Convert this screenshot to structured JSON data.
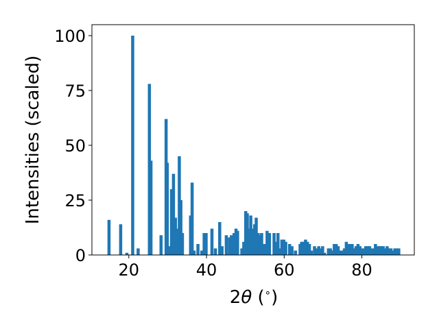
{
  "chart_data": {
    "type": "bar",
    "xlabel_prefix": "2",
    "xlabel_symbol": "θ",
    "xlabel_suffix": " (",
    "xlabel_degree": "∘",
    "xlabel_close": ")",
    "ylabel": "Intensities (scaled)",
    "xlim": [
      10.5,
      93.5
    ],
    "ylim": [
      0,
      105
    ],
    "xticks": [
      20,
      40,
      60,
      80
    ],
    "xtick_labels": [
      "20",
      "40",
      "60",
      "80"
    ],
    "yticks": [
      0,
      25,
      50,
      75,
      100
    ],
    "ytick_labels": [
      "0",
      "25",
      "50",
      "75",
      "100"
    ],
    "bar_width": 0.8,
    "grid": false,
    "bar_color": "#1f77b4",
    "x": [
      14.9,
      17.9,
      19.5,
      21.0,
      22.4,
      25.3,
      25.7,
      28.3,
      29.6,
      29.9,
      30.4,
      31.0,
      31.5,
      32.0,
      32.5,
      33.0,
      33.4,
      33.8,
      35.9,
      36.3,
      36.8,
      37.8,
      38.8,
      39.4,
      39.9,
      41.4,
      42.3,
      43.4,
      44.0,
      45.1,
      45.9,
      46.4,
      47.1,
      47.6,
      48.0,
      49.1,
      49.6,
      50.1,
      50.5,
      50.9,
      51.4,
      51.9,
      52.4,
      52.8,
      53.3,
      53.8,
      54.2,
      54.7,
      55.1,
      55.6,
      56.2,
      57.4,
      57.9,
      58.4,
      58.9,
      59.4,
      59.9,
      60.4,
      61.4,
      62.0,
      62.9,
      64.1,
      64.5,
      65.0,
      65.5,
      66.0,
      66.5,
      67.0,
      67.8,
      68.4,
      68.9,
      69.4,
      69.9,
      70.4,
      71.4,
      71.9,
      72.4,
      72.9,
      73.4,
      73.9,
      74.4,
      74.9,
      75.5,
      76.0,
      76.5,
      77.0,
      77.5,
      78.0,
      78.5,
      79.0,
      79.5,
      80.0,
      80.5,
      81.0,
      81.5,
      82.0,
      82.5,
      83.0,
      83.5,
      84.0,
      84.5,
      85.0,
      85.5,
      86.0,
      86.5,
      87.0,
      87.5,
      88.0,
      88.5,
      89.0,
      89.5
    ],
    "values": [
      16,
      14,
      1,
      100,
      3,
      78,
      43,
      9,
      62,
      42,
      4,
      30,
      37,
      17,
      12,
      45,
      25,
      10,
      18,
      33,
      2,
      5,
      2,
      10,
      10,
      12,
      3,
      15,
      4,
      9,
      8,
      9,
      10,
      12,
      11,
      3,
      6,
      20,
      19,
      12,
      18,
      12,
      14,
      17,
      10,
      9,
      10,
      5,
      5,
      11,
      10,
      10,
      6,
      10,
      3,
      7,
      7,
      6,
      5,
      4,
      2,
      5,
      6,
      6,
      7,
      6,
      5,
      2,
      4,
      3,
      4,
      3,
      4,
      1,
      3,
      3,
      2,
      5,
      5,
      4,
      2,
      2,
      3,
      6,
      5,
      5,
      5,
      3,
      4,
      5,
      4,
      3,
      3,
      4,
      4,
      4,
      3,
      3,
      5,
      4,
      4,
      4,
      4,
      3,
      4,
      3,
      3,
      2,
      3,
      3,
      3
    ]
  }
}
